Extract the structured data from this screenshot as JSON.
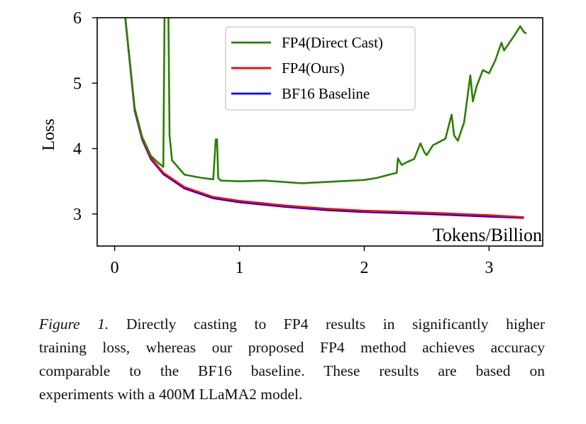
{
  "chart_data": {
    "type": "line",
    "title": "",
    "xlabel": "Tokens/Billion",
    "ylabel": "Loss",
    "xlim": [
      -0.14,
      3.43
    ],
    "ylim": [
      2.51,
      6.0
    ],
    "xticks": [
      0,
      1,
      2,
      3
    ],
    "yticks": [
      3,
      4,
      5,
      6
    ],
    "grid": false,
    "legend_position": "top-center",
    "series": [
      {
        "name": "FP4(Direct Cast)",
        "color": "#2a8000",
        "x": [
          0.085,
          0.16,
          0.22,
          0.29,
          0.35,
          0.39,
          0.4,
          0.41,
          0.42,
          0.43,
          0.44,
          0.46,
          0.56,
          0.7,
          0.79,
          0.81,
          0.82,
          0.83,
          0.85,
          1.0,
          1.2,
          1.5,
          1.8,
          2.0,
          2.1,
          2.2,
          2.26,
          2.27,
          2.3,
          2.35,
          2.4,
          2.45,
          2.48,
          2.5,
          2.55,
          2.6,
          2.65,
          2.7,
          2.72,
          2.75,
          2.8,
          2.85,
          2.87,
          2.9,
          2.95,
          3.0,
          3.05,
          3.1,
          3.12,
          3.2,
          3.25,
          3.28,
          3.3
        ],
        "y": [
          6.0,
          4.62,
          4.18,
          3.89,
          3.78,
          3.72,
          6.1,
          6.1,
          6.1,
          6.1,
          4.2,
          3.82,
          3.6,
          3.55,
          3.53,
          4.14,
          4.14,
          3.55,
          3.51,
          3.5,
          3.51,
          3.47,
          3.5,
          3.52,
          3.55,
          3.6,
          3.63,
          3.85,
          3.75,
          3.8,
          3.84,
          4.08,
          3.95,
          3.9,
          4.05,
          4.1,
          4.15,
          4.52,
          4.2,
          4.12,
          4.4,
          5.12,
          4.72,
          4.95,
          5.2,
          5.15,
          5.35,
          5.62,
          5.5,
          5.72,
          5.87,
          5.78,
          5.76
        ]
      },
      {
        "name": "FP4(Ours)",
        "color": "#ff0000",
        "x": [
          0.085,
          0.16,
          0.22,
          0.29,
          0.39,
          0.56,
          0.79,
          1.0,
          1.36,
          1.7,
          2.0,
          2.5,
          3.0,
          3.28
        ],
        "y": [
          6.0,
          4.6,
          4.16,
          3.86,
          3.63,
          3.41,
          3.26,
          3.2,
          3.13,
          3.08,
          3.05,
          3.02,
          2.98,
          2.95
        ]
      },
      {
        "name": "BF16 Baseline",
        "color": "#0000ff",
        "x": [
          0.085,
          0.16,
          0.22,
          0.29,
          0.39,
          0.56,
          0.79,
          1.0,
          1.36,
          1.7,
          2.0,
          2.5,
          3.0,
          3.28
        ],
        "y": [
          6.0,
          4.58,
          4.14,
          3.84,
          3.61,
          3.39,
          3.24,
          3.18,
          3.11,
          3.06,
          3.03,
          3.0,
          2.96,
          2.94
        ]
      }
    ]
  },
  "caption": {
    "figure_label": "Figure 1.",
    "lines": [
      " Directly casting to FP4 results in significantly higher",
      "training loss, whereas our proposed FP4 method achieves accuracy",
      "comparable to the BF16 baseline.  These results are based on",
      "experiments with a 400M LLaMA2 model."
    ]
  }
}
